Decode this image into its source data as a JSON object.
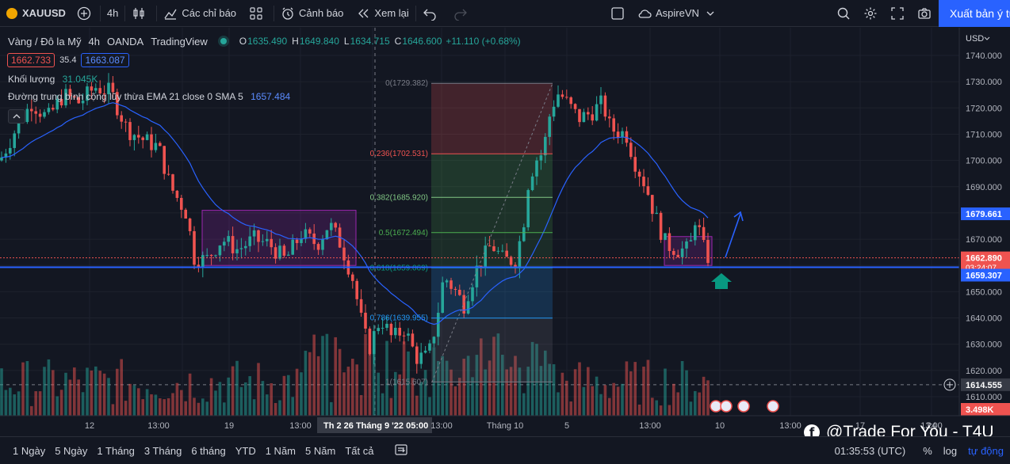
{
  "toolbar": {
    "symbol": "XAUUSD",
    "interval": "4h",
    "indicators_label": "Các chỉ báo",
    "alert_label": "Cảnh báo",
    "replay_label": "Xem lại",
    "layout_name": "AspireVN",
    "publish_label": "Xuất bản ý tưởng"
  },
  "legend": {
    "title": "Vàng / Đô la Mỹ",
    "interval": "4h",
    "exchange": "OANDA",
    "source": "TradingView",
    "o_label": "O",
    "o_value": "1635.490",
    "h_label": "H",
    "h_value": "1649.840",
    "l_label": "L",
    "l_value": "1634.715",
    "c_label": "C",
    "c_value": "1646.600",
    "change": "+11.110 (+0.68%)",
    "sell_price": "1662.733",
    "spread": "35.4",
    "buy_price": "1663.087",
    "volume_label": "Khối lượng",
    "volume_value": "31.045K",
    "ema_label": "Đường trung bình cộng lũy thừa EMA 21 close 0 SMA 5",
    "ema_value": "1657.484"
  },
  "price_axis": {
    "currency": "USD",
    "ticks": [
      "1740.000",
      "1730.000",
      "1720.000",
      "1710.000",
      "1700.000",
      "1690.000",
      "1680.000",
      "1670.000",
      "1660.000",
      "1650.000",
      "1640.000",
      "1630.000",
      "1620.000",
      "1610.000"
    ],
    "tick_values": [
      1740,
      1730,
      1720,
      1710,
      1700,
      1690,
      1680,
      1670,
      1660,
      1650,
      1640,
      1630,
      1620,
      1610
    ],
    "label_blue_top": "1679.661",
    "label_current": "1662.890",
    "label_countdown": "03:24:07",
    "label_blue_line": "1659.307",
    "label_crosshair": "1614.555",
    "label_volume": "3.498K"
  },
  "time_axis": {
    "ticks": [
      "12",
      "13:00",
      "19",
      "13:00",
      "Th 2 26 Tháng 9 '22",
      "05:00",
      "13:00",
      "Tháng 10",
      "5",
      "13:00",
      "10",
      "13:00",
      "17",
      "13:00",
      "24"
    ]
  },
  "fib": {
    "levels": [
      {
        "label": "0(1729.382)",
        "value": 1729.382
      },
      {
        "label": "0.236(1702.531)",
        "value": 1702.531
      },
      {
        "label": "0.382(1685.920)",
        "value": 1685.92
      },
      {
        "label": "0.5(1672.494)",
        "value": 1672.494
      },
      {
        "label": "0.618(1659.069)",
        "value": 1659.069
      },
      {
        "label": "0.786(1639.955)",
        "value": 1639.955
      },
      {
        "label": "1(1615.607)",
        "value": 1615.607
      }
    ]
  },
  "bottom_bar": {
    "ranges": [
      "1 Ngày",
      "5 Ngày",
      "1 Tháng",
      "3 Tháng",
      "6 tháng",
      "YTD",
      "1 Năm",
      "5 Năm",
      "Tất cả"
    ],
    "clock": "01:35:53 (UTC)",
    "percent_label": "%",
    "log_label": "log",
    "auto_label": "tự động"
  },
  "watermark": {
    "icon": "f",
    "text": "@Trade For You - T4U"
  },
  "colors": {
    "background": "#131722",
    "up": "#26a69a",
    "down": "#ef5350",
    "ema": "#2962ff",
    "accent_blue": "#2962ff",
    "box_purple": "#9c27b0"
  }
}
